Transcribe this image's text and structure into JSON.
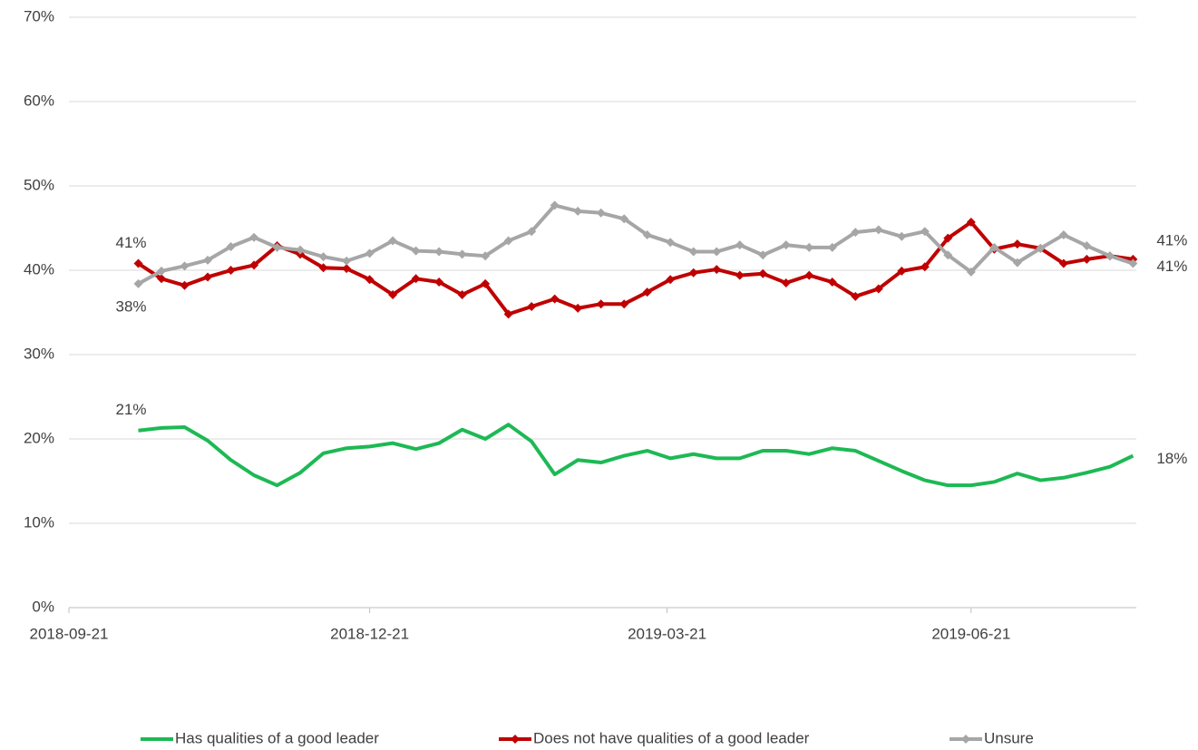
{
  "chart_data": {
    "type": "line",
    "x": [
      "2018-10-12",
      "2018-10-19",
      "2018-10-26",
      "2018-11-02",
      "2018-11-09",
      "2018-11-16",
      "2018-11-23",
      "2018-11-30",
      "2018-12-07",
      "2018-12-14",
      "2018-12-21",
      "2018-12-28",
      "2019-01-04",
      "2019-01-11",
      "2019-01-18",
      "2019-01-25",
      "2019-02-01",
      "2019-02-08",
      "2019-02-15",
      "2019-02-22",
      "2019-03-01",
      "2019-03-08",
      "2019-03-15",
      "2019-03-22",
      "2019-03-29",
      "2019-04-05",
      "2019-04-12",
      "2019-04-19",
      "2019-04-26",
      "2019-05-03",
      "2019-05-10",
      "2019-05-17",
      "2019-05-24",
      "2019-05-31",
      "2019-06-07",
      "2019-06-14",
      "2019-06-21",
      "2019-06-28",
      "2019-07-05",
      "2019-07-12",
      "2019-07-19",
      "2019-07-26",
      "2019-08-02",
      "2019-08-09"
    ],
    "series": [
      {
        "name": "Has qualities of a good leader",
        "color": "#1db954",
        "values": [
          21,
          21.3,
          21.4,
          19.8,
          17.5,
          15.7,
          14.5,
          16,
          18.3,
          18.9,
          19.1,
          19.5,
          18.8,
          19.5,
          21.1,
          20,
          21.7,
          19.7,
          15.8,
          17.5,
          17.2,
          18,
          18.6,
          17.7,
          18.2,
          17.7,
          17.7,
          18.6,
          18.6,
          18.2,
          18.9,
          18.6,
          17.4,
          16.2,
          15.1,
          14.5,
          14.5,
          14.9,
          15.9,
          15.1,
          15.4,
          16,
          16.7,
          18
        ],
        "value_labels": [
          "21%",
          null,
          null,
          null,
          null,
          null,
          null,
          null,
          null,
          null,
          null,
          null,
          null,
          null,
          null,
          null,
          null,
          null,
          null,
          null,
          null,
          null,
          null,
          null,
          null,
          null,
          null,
          null,
          null,
          null,
          null,
          null,
          null,
          null,
          null,
          null,
          null,
          null,
          null,
          null,
          null,
          null,
          null,
          "18%"
        ]
      },
      {
        "name": "Does not have qualities of a good leader",
        "color": "#c00000",
        "marker": "diamond",
        "values": [
          40.8,
          39,
          38.2,
          39.2,
          40,
          40.6,
          42.9,
          41.9,
          40.3,
          40.2,
          38.9,
          37.1,
          39,
          38.6,
          37.1,
          38.4,
          34.8,
          35.7,
          36.6,
          35.5,
          36,
          36,
          37.4,
          38.9,
          39.7,
          40.1,
          39.4,
          39.6,
          38.5,
          39.4,
          38.6,
          36.9,
          37.8,
          39.9,
          40.4,
          43.8,
          45.7,
          42.5,
          43.1,
          42.6,
          40.8,
          41.3,
          41.7,
          41.3
        ],
        "value_labels": [
          "41%",
          null,
          null,
          null,
          null,
          null,
          null,
          null,
          null,
          null,
          null,
          null,
          null,
          null,
          null,
          null,
          null,
          null,
          null,
          null,
          null,
          null,
          null,
          null,
          null,
          null,
          null,
          null,
          null,
          null,
          null,
          null,
          null,
          null,
          null,
          null,
          null,
          null,
          null,
          null,
          null,
          null,
          null,
          "41%"
        ]
      },
      {
        "name": "Unsure",
        "color": "#a6a6a6",
        "marker": "diamond",
        "values": [
          38.4,
          39.9,
          40.5,
          41.2,
          42.8,
          43.9,
          42.7,
          42.4,
          41.6,
          41.1,
          42,
          43.5,
          42.3,
          42.2,
          41.9,
          41.7,
          43.5,
          44.6,
          47.7,
          47,
          46.8,
          46.1,
          44.2,
          43.3,
          42.2,
          42.2,
          43,
          41.8,
          43,
          42.7,
          42.7,
          44.5,
          44.8,
          44,
          44.6,
          41.8,
          39.8,
          42.7,
          40.9,
          42.6,
          44.2,
          42.9,
          41.7,
          40.8
        ],
        "value_labels": [
          "38%",
          null,
          null,
          null,
          null,
          null,
          null,
          null,
          null,
          null,
          null,
          null,
          null,
          null,
          null,
          null,
          null,
          null,
          null,
          null,
          null,
          null,
          null,
          null,
          null,
          null,
          null,
          null,
          null,
          null,
          null,
          null,
          null,
          null,
          null,
          null,
          null,
          null,
          null,
          null,
          null,
          null,
          null,
          "41%"
        ]
      }
    ],
    "xlim": [
      "2018-09-21",
      "2019-08-10"
    ],
    "xticks": [
      "2018-09-21",
      "2018-12-21",
      "2019-03-21",
      "2019-06-21"
    ],
    "ylim": [
      0,
      70
    ],
    "yticks": [
      {
        "value": 0,
        "label": "0%"
      },
      {
        "value": 10,
        "label": "10%"
      },
      {
        "value": 20,
        "label": "20%"
      },
      {
        "value": 30,
        "label": "30%"
      },
      {
        "value": 40,
        "label": "40%"
      },
      {
        "value": 50,
        "label": "50%"
      },
      {
        "value": 60,
        "label": "60%"
      },
      {
        "value": 70,
        "label": "70%"
      }
    ],
    "grid": true,
    "legend": "bottom"
  }
}
